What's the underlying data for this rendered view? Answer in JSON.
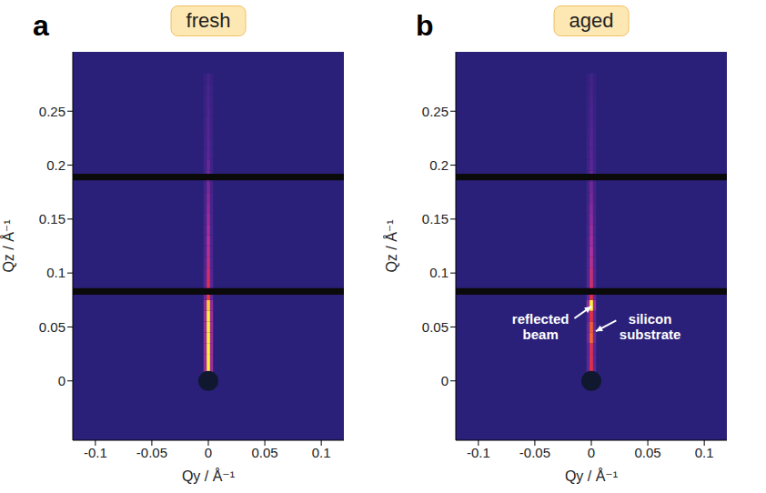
{
  "chart_data": [
    {
      "type": "heatmap",
      "letter": "a",
      "title": "fresh",
      "xlabel": "Qy / Å⁻¹",
      "ylabel": "Qz / Å⁻¹",
      "xlim": [
        -0.12,
        0.12
      ],
      "ylim": [
        -0.055,
        0.305
      ],
      "xticks": [
        -0.1,
        -0.05,
        0,
        0.05,
        0.1
      ],
      "yticks": [
        0,
        0.05,
        0.1,
        0.15,
        0.2,
        0.25
      ],
      "grid": false,
      "intensity_lim": [
        0,
        1
      ],
      "streak": {
        "qy": 0,
        "qz": [
          0,
          0.01,
          0.02,
          0.03,
          0.04,
          0.05,
          0.06,
          0.07,
          0.08,
          0.09,
          0.1,
          0.11,
          0.12,
          0.13,
          0.14,
          0.15,
          0.16,
          0.17,
          0.18,
          0.19,
          0.2,
          0.21,
          0.22,
          0.23,
          0.24,
          0.25,
          0.26,
          0.27,
          0.28
        ],
        "intensity": [
          1,
          1,
          1,
          1,
          1,
          1,
          1,
          0.95,
          0.72,
          0.65,
          0.6,
          0.55,
          0.52,
          0.5,
          0.47,
          0.45,
          0.42,
          0.4,
          0.37,
          0.35,
          0.33,
          0.3,
          0.28,
          0.26,
          0.24,
          0.22,
          0.2,
          0.18,
          0.16
        ]
      },
      "detector_gaps": [
        [
          0.08,
          0.086
        ],
        [
          0.186,
          0.192
        ]
      ],
      "beamstop": {
        "qy": 0,
        "qz": 0
      },
      "annotations": []
    },
    {
      "type": "heatmap",
      "letter": "b",
      "title": "aged",
      "xlabel": "Qy / Å⁻¹",
      "ylabel": "Qz / Å⁻¹",
      "xlim": [
        -0.12,
        0.12
      ],
      "ylim": [
        -0.055,
        0.305
      ],
      "xticks": [
        -0.1,
        -0.05,
        0,
        0.05,
        0.1
      ],
      "yticks": [
        0,
        0.05,
        0.1,
        0.15,
        0.2,
        0.25
      ],
      "grid": false,
      "intensity_lim": [
        0,
        1
      ],
      "streak": {
        "qy": 0,
        "qz": [
          0,
          0.01,
          0.02,
          0.03,
          0.04,
          0.05,
          0.06,
          0.07,
          0.08,
          0.09,
          0.1,
          0.11,
          0.12,
          0.13,
          0.14,
          0.15,
          0.16,
          0.17,
          0.18,
          0.19,
          0.2,
          0.21,
          0.22,
          0.23,
          0.24,
          0.25,
          0.26,
          0.27,
          0.28
        ],
        "intensity": [
          0.72,
          0.7,
          0.68,
          0.66,
          0.8,
          0.78,
          0.7,
          1,
          0.7,
          0.62,
          0.58,
          0.53,
          0.5,
          0.47,
          0.45,
          0.42,
          0.4,
          0.37,
          0.35,
          0.33,
          0.3,
          0.28,
          0.26,
          0.24,
          0.22,
          0.2,
          0.18,
          0.16,
          0.14
        ]
      },
      "detector_gaps": [
        [
          0.08,
          0.086
        ],
        [
          0.186,
          0.192
        ]
      ],
      "beamstop": {
        "qy": 0,
        "qz": 0
      },
      "annotations": [
        {
          "text": "reflected beam",
          "text_qy": -0.045,
          "text_qz": 0.05,
          "arrow_from": [
            -0.015,
            0.058
          ],
          "qy": 0,
          "qz": 0.069
        },
        {
          "text": "silicon substrate",
          "text_qy": 0.052,
          "text_qz": 0.05,
          "arrow_from": [
            0.022,
            0.056
          ],
          "qy": 0.004,
          "qz": 0.046
        }
      ]
    }
  ]
}
